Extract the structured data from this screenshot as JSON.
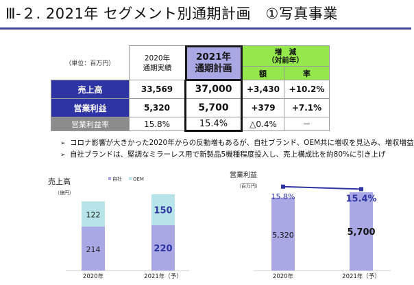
{
  "title": "Ⅲ-２. 2021年 セグメント別通期計画　①写真事業",
  "table": {
    "unit": "（単位：百万円）",
    "col_2020": [
      "2020年",
      "通期実績"
    ],
    "col_2021": [
      "2021年",
      "通期計画"
    ],
    "col_change": [
      "増　減",
      "（対前年）"
    ],
    "sub_amount": "額",
    "sub_rate": "率",
    "rows": [
      {
        "label": "売上高",
        "v2020": "33,569",
        "v2021": "37,000",
        "amount": "+3,430",
        "rate": "+10.2%"
      },
      {
        "label": "営業利益",
        "v2020": "5,320",
        "v2021": "5,700",
        "amount": "+379",
        "rate": "+7.1%"
      },
      {
        "label": "営業利益率",
        "v2020": "15.8%",
        "v2021": "15.4%",
        "amount": "△0.4%",
        "rate": "－"
      }
    ]
  },
  "bullets": [
    "コロナ影響が大きかった2020年からの反動増もあるが、自社ブランド、OEM共に増収を見込み、増収増益",
    "自社ブランドは、堅調なミラーレス用で新製品5機種程度投入し、売上構成比を約80%に引き上げ"
  ],
  "bullet_marker": "➢",
  "colors": {
    "accent": "#3f4499",
    "navy": "#2e34a3",
    "green": "#94e84b",
    "lavender": "#a9a8e4",
    "own": "#a9a8e4",
    "oem": "#b7e4e9"
  },
  "chart_data": [
    {
      "type": "bar",
      "title": "売上高",
      "ylabel": "（億円）",
      "categories": [
        "2020年",
        "2021年（予）"
      ],
      "series": [
        {
          "name": "自社",
          "values": [
            214,
            220
          ]
        },
        {
          "name": "OEM",
          "values": [
            122,
            150
          ]
        }
      ],
      "stacked": true,
      "legend": "top"
    },
    {
      "type": "bar",
      "title": "営業利益",
      "ylabel": "（百万円）",
      "categories": [
        "2020年",
        "2021年（予）"
      ],
      "series": [
        {
          "name": "営業利益",
          "values": [
            5320,
            5700
          ]
        },
        {
          "name": "営業利益率",
          "values": [
            15.8,
            15.4
          ],
          "type": "line"
        }
      ],
      "value_labels": [
        "5,320",
        "5,700"
      ],
      "rate_labels": [
        "15.8%",
        "15.4%"
      ]
    }
  ]
}
